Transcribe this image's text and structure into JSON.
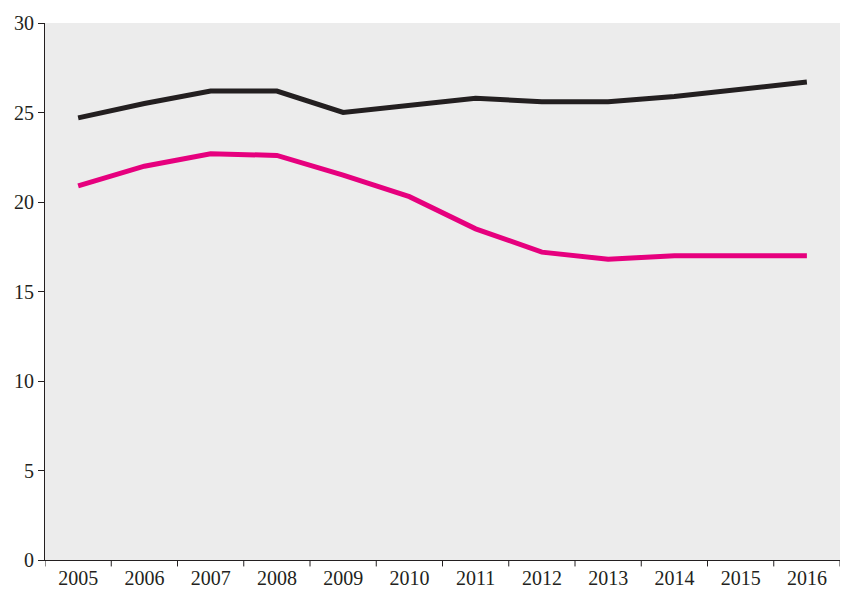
{
  "chart_data": {
    "type": "line",
    "categories": [
      "2005",
      "2006",
      "2007",
      "2008",
      "2009",
      "2010",
      "2011",
      "2012",
      "2013",
      "2014",
      "2015",
      "2016"
    ],
    "series": [
      {
        "color": "#231f20",
        "values": [
          24.7,
          25.5,
          26.2,
          26.2,
          25.0,
          25.4,
          25.8,
          25.6,
          25.6,
          25.9,
          26.3,
          26.7
        ]
      },
      {
        "color": "#e6007e",
        "values": [
          20.9,
          22.0,
          22.7,
          22.6,
          21.5,
          20.3,
          18.5,
          17.2,
          16.8,
          17.0,
          17.0,
          17.0
        ]
      }
    ],
    "ylim": [
      0,
      30
    ],
    "yticks": [
      0,
      5,
      10,
      15,
      20,
      25,
      30
    ],
    "grid": false
  }
}
